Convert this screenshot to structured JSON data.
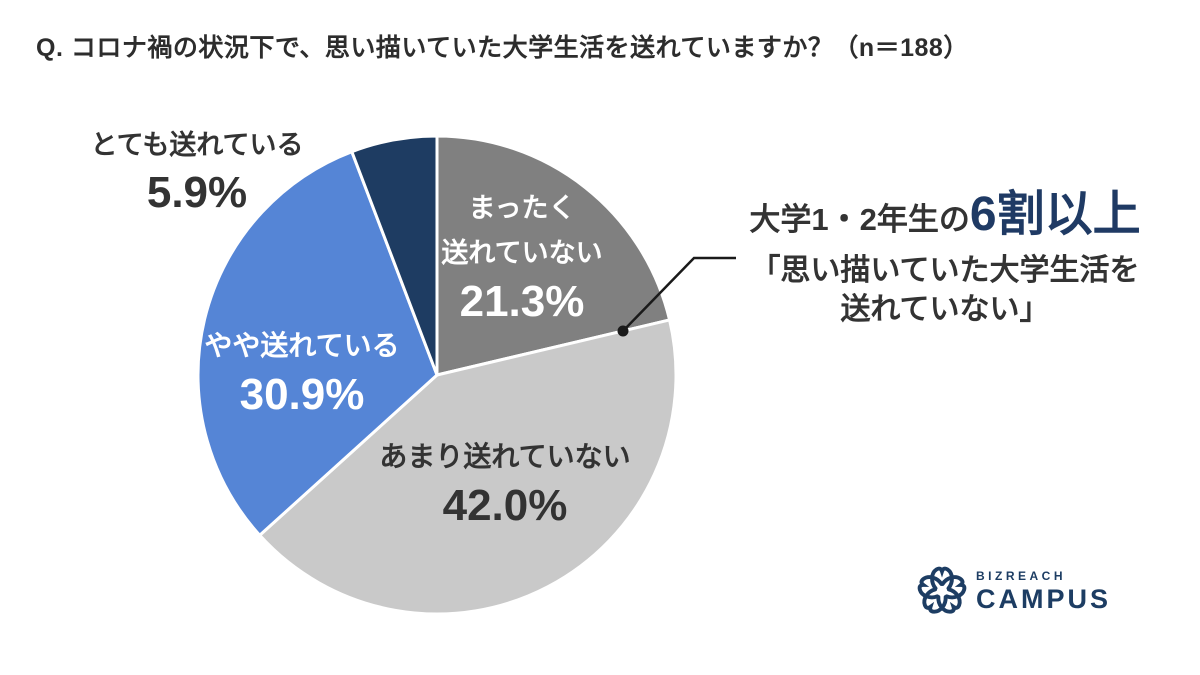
{
  "title": "Q. コロナ禍の状況下で、思い描いていた大学生活を送れていますか？（n＝188）",
  "chart_data": {
    "type": "pie",
    "title": "コロナ禍で思い描いていた大学生活を送れているか",
    "n_label": "n＝188",
    "categories": [
      "まったく送れていない",
      "あまり送れていない",
      "やや送れている",
      "とても送れている"
    ],
    "values": [
      21.3,
      42.0,
      30.9,
      5.9
    ],
    "colors": [
      "#808080",
      "#c9c9c9",
      "#5585d6",
      "#1e3c62"
    ],
    "start_angle_deg": 0,
    "direction": "clockwise",
    "legend_position": "labels-on-slices",
    "slices": [
      {
        "label_line1": "まったく",
        "label_line2": "送れていない",
        "pct_label": "21.3%",
        "label_placement": "inside"
      },
      {
        "label": "あまり送れていない",
        "pct_label": "42.0%",
        "label_placement": "inside"
      },
      {
        "label": "やや送れている",
        "pct_label": "30.9%",
        "label_placement": "inside"
      },
      {
        "label": "とても送れている",
        "pct_label": "5.9%",
        "label_placement": "outside"
      }
    ]
  },
  "annotation": {
    "prefix": "大学1・2年生の",
    "highlight": "6割以上",
    "highlight_color": "#1f3a64",
    "quote_line1": "「思い描いていた大学生活を",
    "quote_line2": "送れていない」"
  },
  "logo": {
    "top": "BIZREACH",
    "bottom": "CAMPUS",
    "color": "#1d3d63"
  }
}
